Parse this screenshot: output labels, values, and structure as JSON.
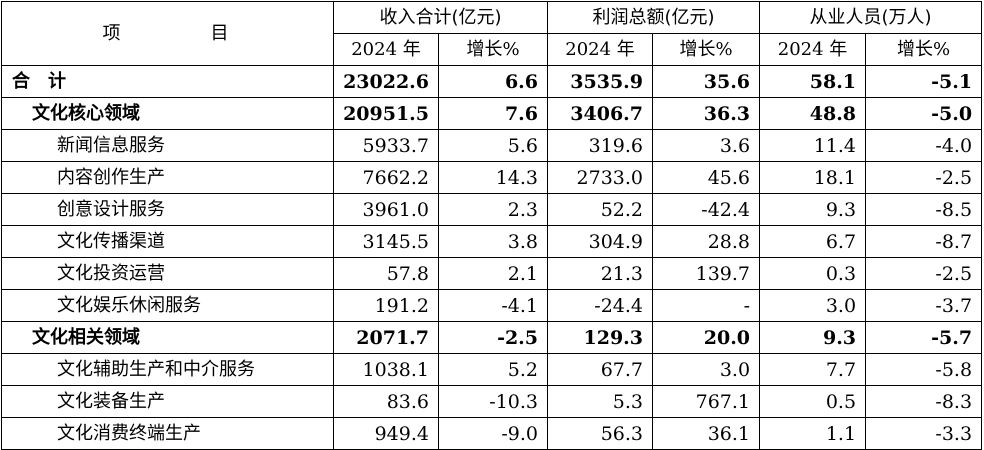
{
  "header": {
    "item_label": "项目",
    "groups": [
      "收入合计(亿元)",
      "利润总额(亿元)",
      "从业人员(万人)"
    ],
    "sub_year": "2024 年",
    "sub_growth": "增长%"
  },
  "rows": [
    {
      "name": "合计",
      "level": "total",
      "values": [
        "23022.6",
        "6.6",
        "3535.9",
        "35.6",
        "58.1",
        "-5.1"
      ]
    },
    {
      "name": "文化核心领域",
      "level": "group",
      "values": [
        "20951.5",
        "7.6",
        "3406.7",
        "36.3",
        "48.8",
        "-5.0"
      ]
    },
    {
      "name": "新闻信息服务",
      "level": "item",
      "values": [
        "5933.7",
        "5.6",
        "319.6",
        "3.6",
        "11.4",
        "-4.0"
      ]
    },
    {
      "name": "内容创作生产",
      "level": "item",
      "values": [
        "7662.2",
        "14.3",
        "2733.0",
        "45.6",
        "18.1",
        "-2.5"
      ]
    },
    {
      "name": "创意设计服务",
      "level": "item",
      "values": [
        "3961.0",
        "2.3",
        "52.2",
        "-42.4",
        "9.3",
        "-8.5"
      ]
    },
    {
      "name": "文化传播渠道",
      "level": "item",
      "values": [
        "3145.5",
        "3.8",
        "304.9",
        "28.8",
        "6.7",
        "-8.7"
      ]
    },
    {
      "name": "文化投资运营",
      "level": "item",
      "values": [
        "57.8",
        "2.1",
        "21.3",
        "139.7",
        "0.3",
        "-2.5"
      ]
    },
    {
      "name": "文化娱乐休闲服务",
      "level": "item",
      "values": [
        "191.2",
        "-4.1",
        "-24.4",
        "-",
        "3.0",
        "-3.7"
      ]
    },
    {
      "name": "文化相关领域",
      "level": "group",
      "values": [
        "2071.7",
        "-2.5",
        "129.3",
        "20.0",
        "9.3",
        "-5.7"
      ]
    },
    {
      "name": "文化辅助生产和中介服务",
      "level": "item",
      "values": [
        "1038.1",
        "5.2",
        "67.7",
        "3.0",
        "7.7",
        "-5.8"
      ]
    },
    {
      "name": "文化装备生产",
      "level": "item",
      "values": [
        "83.6",
        "-10.3",
        "5.3",
        "767.1",
        "0.5",
        "-8.3"
      ]
    },
    {
      "name": "文化消费终端生产",
      "level": "item",
      "values": [
        "949.4",
        "-9.0",
        "56.3",
        "36.1",
        "1.1",
        "-3.3"
      ]
    }
  ]
}
